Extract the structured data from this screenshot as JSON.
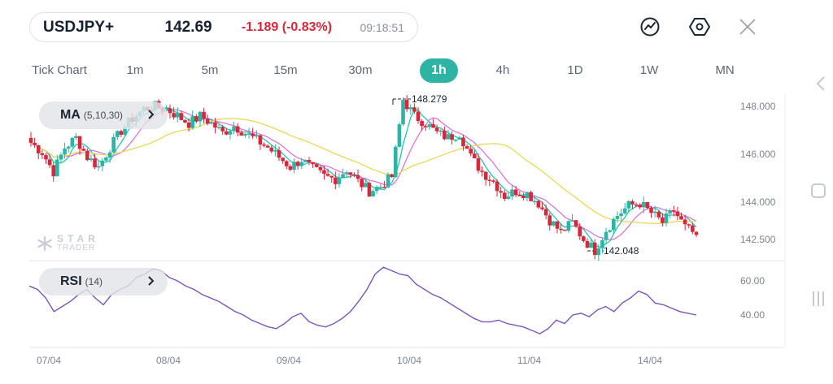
{
  "ticker": {
    "symbol": "USDJPY+",
    "price": "142.69",
    "change": "-1.189 (-0.83%)",
    "time": "09:18:51"
  },
  "toolbar": {
    "indicator_icon": "trend-line-icon",
    "settings_icon": "hexagon-settings-icon",
    "close_icon": "close-icon"
  },
  "timeframes": [
    {
      "label": "Tick Chart",
      "active": false
    },
    {
      "label": "1m",
      "active": false
    },
    {
      "label": "5m",
      "active": false
    },
    {
      "label": "15m",
      "active": false
    },
    {
      "label": "30m",
      "active": false
    },
    {
      "label": "1h",
      "active": true
    },
    {
      "label": "4h",
      "active": false
    },
    {
      "label": "1D",
      "active": false
    },
    {
      "label": "1W",
      "active": false
    },
    {
      "label": "MN",
      "active": false
    }
  ],
  "indicators": {
    "ma": {
      "name": "MA",
      "params": "(5,10,30)"
    },
    "rsi": {
      "name": "RSI",
      "params": "(14)"
    }
  },
  "watermark": {
    "line1": "STAR",
    "line2": "TRADER"
  },
  "annotations": {
    "high": "148.279",
    "low": "142.048"
  },
  "colors": {
    "up": "#2bb5a6",
    "down": "#d8263a",
    "accent": "#2fb4a3",
    "ma5": "#2bc1b0",
    "ma10": "#d579d6",
    "ma30": "#e7d95a",
    "rsi": "#7a55b5"
  },
  "chart_data": [
    {
      "type": "candlestick",
      "title": "",
      "y_ticks": [
        "148.000",
        "146.000",
        "144.000",
        "142.500"
      ],
      "x_ticks": [
        "07/04",
        "08/04",
        "09/04",
        "10/04",
        "11/04",
        "14/04"
      ],
      "ylim": [
        141.8,
        148.6
      ],
      "marked_high": 148.279,
      "marked_low": 142.048,
      "close_path": [
        146.5,
        146.1,
        145.3,
        146.3,
        146.7,
        145.9,
        145.5,
        146.3,
        147.0,
        147.5,
        147.9,
        148.0,
        147.9,
        147.6,
        147.3,
        147.6,
        147.3,
        146.9,
        147.2,
        146.9,
        146.6,
        146.3,
        145.9,
        145.5,
        145.8,
        145.4,
        145.1,
        145.0,
        145.4,
        144.9,
        144.5,
        144.7,
        145.1,
        148.279,
        147.6,
        147.3,
        146.9,
        146.7,
        146.9,
        145.9,
        145.3,
        144.9,
        144.3,
        144.5,
        144.4,
        144.0,
        143.3,
        142.8,
        143.2,
        142.5,
        142.048,
        142.9,
        143.5,
        143.9,
        144.0,
        143.6,
        143.2,
        143.7,
        143.0,
        142.69
      ],
      "series": [
        {
          "name": "MA5",
          "color": "#2bc1b0"
        },
        {
          "name": "MA10",
          "color": "#d579d6"
        },
        {
          "name": "MA30",
          "color": "#e7d95a"
        }
      ]
    },
    {
      "type": "line",
      "title": "",
      "y_ticks": [
        "60.00",
        "40.00"
      ],
      "ylim": [
        25,
        72
      ],
      "values": [
        57,
        55,
        50,
        42,
        45,
        48,
        52,
        55,
        50,
        46,
        52,
        55,
        57,
        62,
        64,
        67,
        66,
        62,
        60,
        57,
        55,
        52,
        50,
        48,
        45,
        42,
        40,
        37,
        35,
        33,
        32,
        35,
        39,
        41,
        36,
        34,
        33,
        35,
        38,
        42,
        48,
        55,
        64,
        68,
        66,
        64,
        63,
        58,
        55,
        52,
        50,
        47,
        44,
        41,
        38,
        36,
        36,
        37,
        35,
        34,
        33,
        31,
        29,
        32,
        37,
        35,
        40,
        41,
        39,
        43,
        45,
        42,
        47,
        50,
        54,
        52,
        47,
        46,
        44,
        42,
        41,
        40
      ],
      "series": [
        {
          "name": "RSI",
          "color": "#7a55b5"
        }
      ]
    }
  ]
}
